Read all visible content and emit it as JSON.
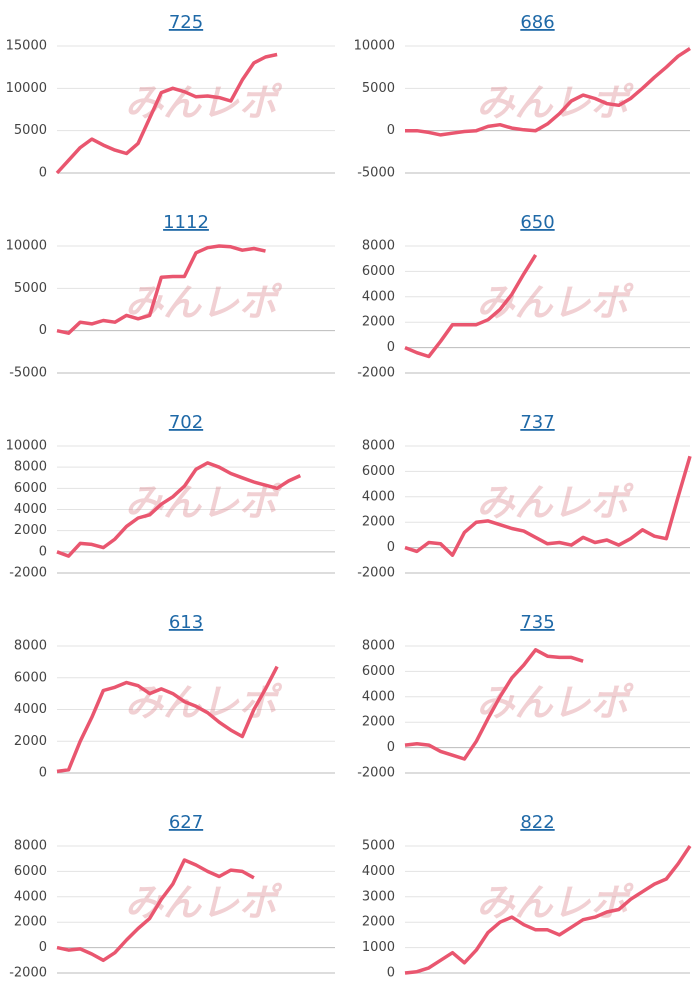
{
  "watermark": "みんレポ",
  "chart_data": [
    {
      "type": "line",
      "title": "725",
      "color": "#e9566f",
      "ylim": [
        0,
        15000
      ],
      "yticks": [
        0,
        5000,
        10000,
        15000
      ],
      "grid": true,
      "values": [
        0,
        1500,
        3000,
        4000,
        3300,
        2700,
        2300,
        3500,
        6500,
        9500,
        10000,
        9600,
        9000,
        9100,
        8900,
        8500,
        11000,
        13000,
        13700,
        14000,
        null,
        null,
        null,
        null,
        null
      ]
    },
    {
      "type": "line",
      "title": "686",
      "color": "#e9566f",
      "ylim": [
        -5000,
        10000
      ],
      "yticks": [
        -5000,
        0,
        5000,
        10000
      ],
      "grid": true,
      "values": [
        0,
        0,
        -200,
        -500,
        -300,
        -100,
        0,
        500,
        700,
        300,
        100,
        0,
        800,
        2000,
        3500,
        4200,
        3800,
        3200,
        3000,
        3800,
        5000,
        6300,
        7500,
        8800,
        9700
      ]
    },
    {
      "type": "line",
      "title": "1112",
      "color": "#e9566f",
      "ylim": [
        -5000,
        10000
      ],
      "yticks": [
        -5000,
        0,
        5000,
        10000
      ],
      "grid": true,
      "values": [
        0,
        -300,
        1000,
        800,
        1200,
        1000,
        1800,
        1400,
        1800,
        6300,
        6400,
        6400,
        9200,
        9800,
        10000,
        9900,
        9500,
        9700,
        9400,
        null,
        null,
        null,
        null,
        null,
        null
      ]
    },
    {
      "type": "line",
      "title": "650",
      "color": "#e9566f",
      "ylim": [
        -2000,
        8000
      ],
      "yticks": [
        -2000,
        0,
        2000,
        4000,
        6000,
        8000
      ],
      "grid": true,
      "values": [
        0,
        -400,
        -700,
        500,
        1800,
        1800,
        1800,
        2200,
        3000,
        4200,
        5800,
        7300,
        null,
        null,
        null,
        null,
        null,
        null,
        null,
        null,
        null,
        null,
        null,
        null,
        null
      ]
    },
    {
      "type": "line",
      "title": "702",
      "color": "#e9566f",
      "ylim": [
        -2000,
        10000
      ],
      "yticks": [
        -2000,
        0,
        2000,
        4000,
        6000,
        8000,
        10000
      ],
      "grid": true,
      "values": [
        0,
        -400,
        800,
        700,
        400,
        1200,
        2400,
        3200,
        3500,
        4500,
        5200,
        6200,
        7800,
        8400,
        8000,
        7400,
        7000,
        6600,
        6300,
        6000,
        6700,
        7200,
        null,
        null,
        null
      ]
    },
    {
      "type": "line",
      "title": "737",
      "color": "#e9566f",
      "ylim": [
        -2000,
        8000
      ],
      "yticks": [
        -2000,
        0,
        2000,
        4000,
        6000,
        8000
      ],
      "grid": true,
      "values": [
        0,
        -300,
        400,
        300,
        -600,
        1200,
        2000,
        2100,
        1800,
        1500,
        1300,
        800,
        300,
        400,
        200,
        800,
        400,
        600,
        200,
        700,
        1400,
        900,
        700,
        4000,
        7200
      ]
    },
    {
      "type": "line",
      "title": "613",
      "color": "#e9566f",
      "ylim": [
        0,
        8000
      ],
      "yticks": [
        0,
        2000,
        4000,
        6000,
        8000
      ],
      "grid": true,
      "values": [
        100,
        200,
        2000,
        3500,
        5200,
        5400,
        5700,
        5500,
        5000,
        5300,
        5000,
        4500,
        4200,
        3800,
        3200,
        2700,
        2300,
        4000,
        5300,
        6700,
        null,
        null,
        null,
        null,
        null
      ]
    },
    {
      "type": "line",
      "title": "735",
      "color": "#e9566f",
      "ylim": [
        -2000,
        8000
      ],
      "yticks": [
        -2000,
        0,
        2000,
        4000,
        6000,
        8000
      ],
      "grid": true,
      "values": [
        200,
        300,
        200,
        -300,
        -600,
        -900,
        500,
        2300,
        4000,
        5500,
        6500,
        7700,
        7200,
        7100,
        7100,
        6800,
        null,
        null,
        null,
        null,
        null,
        null,
        null,
        null,
        null
      ]
    },
    {
      "type": "line",
      "title": "627",
      "color": "#e9566f",
      "ylim": [
        -2000,
        8000
      ],
      "yticks": [
        -2000,
        0,
        2000,
        4000,
        6000,
        8000
      ],
      "grid": true,
      "values": [
        0,
        -200,
        -100,
        -500,
        -1000,
        -400,
        600,
        1500,
        2300,
        3800,
        5000,
        6900,
        6500,
        6000,
        5600,
        6100,
        6000,
        5500,
        null,
        null,
        null,
        null,
        null,
        null,
        null
      ]
    },
    {
      "type": "line",
      "title": "822",
      "color": "#e9566f",
      "ylim": [
        0,
        5000
      ],
      "yticks": [
        0,
        1000,
        2000,
        3000,
        4000,
        5000
      ],
      "grid": true,
      "values": [
        0,
        50,
        200,
        500,
        800,
        400,
        900,
        1600,
        2000,
        2200,
        1900,
        1700,
        1700,
        1500,
        1800,
        2100,
        2200,
        2400,
        2500,
        2900,
        3200,
        3500,
        3700,
        4300,
        5000
      ]
    }
  ]
}
